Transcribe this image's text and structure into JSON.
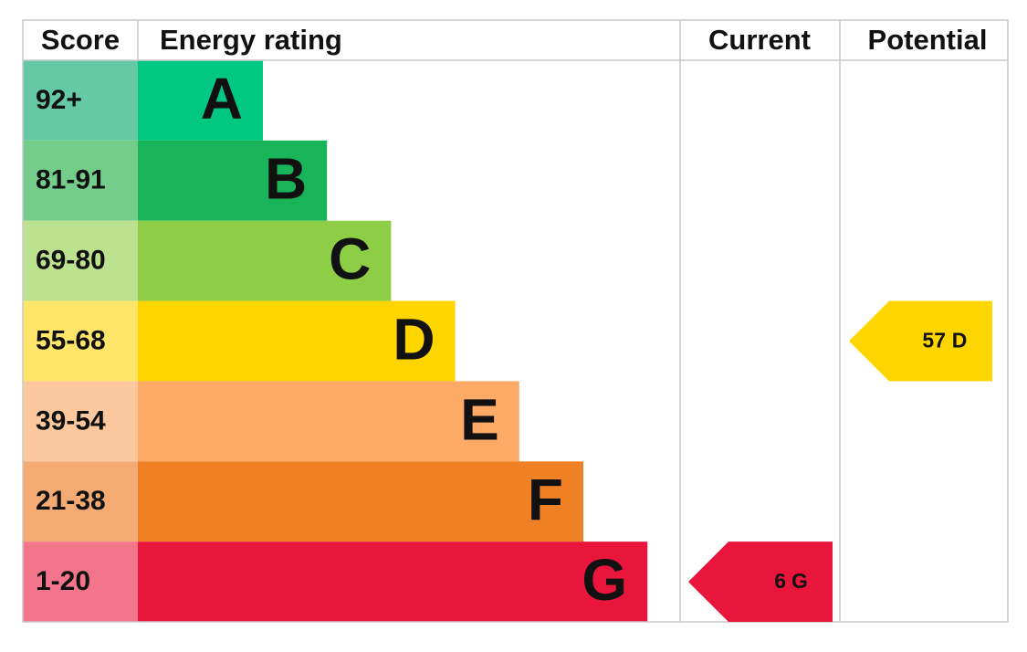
{
  "header": {
    "score": "Score",
    "rating": "Energy rating",
    "current": "Current",
    "potential": "Potential"
  },
  "bands": [
    {
      "score": "92+",
      "letter": "A",
      "color": "#00c781",
      "score_color": "#66c9a6"
    },
    {
      "score": "81-91",
      "letter": "B",
      "color": "#19b459",
      "score_color": "#74cd8b"
    },
    {
      "score": "69-80",
      "letter": "C",
      "color": "#8dce46",
      "score_color": "#bde28f"
    },
    {
      "score": "55-68",
      "letter": "D",
      "color": "#ffd500",
      "score_color": "#ffe66b"
    },
    {
      "score": "39-54",
      "letter": "E",
      "color": "#fcaa65",
      "score_color": "#fdc89d"
    },
    {
      "score": "21-38",
      "letter": "F",
      "color": "#ef8023",
      "score_color": "#f4ab73"
    },
    {
      "score": "1-20",
      "letter": "G",
      "color": "#e9153b",
      "score_color": "#f3758b"
    }
  ],
  "current": {
    "value": 6,
    "letter": "G"
  },
  "potential": {
    "value": 57,
    "letter": "D"
  }
}
